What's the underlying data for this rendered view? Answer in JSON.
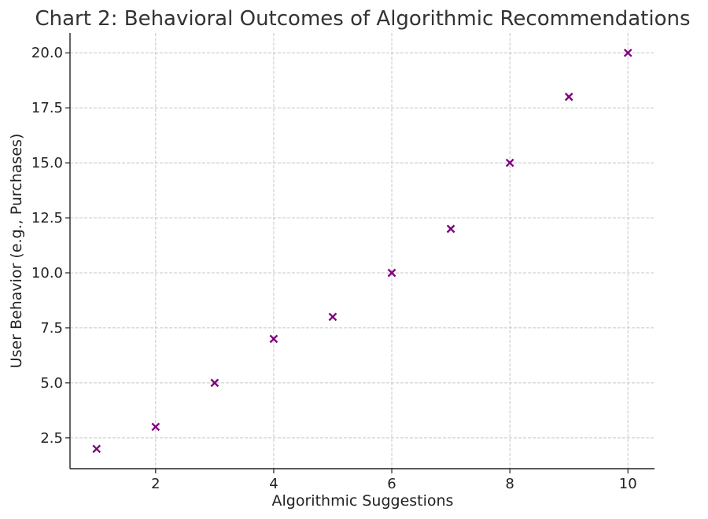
{
  "chart_data": {
    "type": "scatter",
    "title": "Chart 2: Behavioral Outcomes of Algorithmic Recommendations",
    "xlabel": "Algorithmic Suggestions",
    "ylabel": "User Behavior (e.g., Purchases)",
    "x": [
      1,
      2,
      3,
      4,
      5,
      6,
      7,
      8,
      9,
      10
    ],
    "y": [
      2,
      3,
      5,
      7,
      8,
      10,
      12,
      15,
      18,
      20
    ],
    "xlim": [
      0.55,
      10.45
    ],
    "ylim": [
      1.1,
      20.9
    ],
    "xticks": [
      2,
      4,
      6,
      8,
      10
    ],
    "xtick_labels": [
      "2",
      "4",
      "6",
      "8",
      "10"
    ],
    "yticks": [
      2.5,
      5.0,
      7.5,
      10.0,
      12.5,
      15.0,
      17.5,
      20.0
    ],
    "ytick_labels": [
      "2.5",
      "5.0",
      "7.5",
      "10.0",
      "12.5",
      "15.0",
      "17.5",
      "20.0"
    ],
    "marker": "x",
    "marker_color": "#800080",
    "grid": true
  }
}
